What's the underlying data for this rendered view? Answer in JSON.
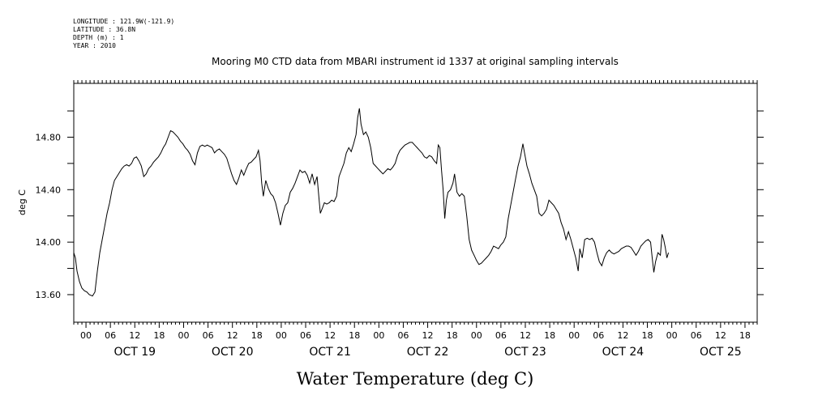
{
  "header": {
    "lines": [
      "LONGITUDE : 121.9W(-121.9)",
      "LATITUDE : 36.8N",
      "DEPTH (m) : 1",
      "YEAR : 2010"
    ]
  },
  "chart_data": {
    "type": "line",
    "title": "Mooring M0 CTD data from MBARI instrument id 1337 at original sampling intervals",
    "xlabel": "Water Temperature (deg C)",
    "ylabel": "deg C",
    "x_unit": "hours since 2010-10-19 00:00",
    "xlim": [
      -3,
      165
    ],
    "ylim": [
      13.39,
      15.21
    ],
    "y_ticks": [
      13.6,
      13.8,
      14.0,
      14.2,
      14.4,
      14.6,
      14.8,
      15.0
    ],
    "y_tick_labels": [
      {
        "value": 13.6,
        "label": "13.60"
      },
      {
        "value": 14.0,
        "label": "14.00"
      },
      {
        "value": 14.4,
        "label": "14.40"
      },
      {
        "value": 14.8,
        "label": "14.80"
      }
    ],
    "hour_ticks": [
      {
        "h": 0,
        "label": "00"
      },
      {
        "h": 6,
        "label": "06"
      },
      {
        "h": 12,
        "label": "12"
      },
      {
        "h": 18,
        "label": "18"
      },
      {
        "h": 24,
        "label": "00"
      },
      {
        "h": 30,
        "label": "06"
      },
      {
        "h": 36,
        "label": "12"
      },
      {
        "h": 42,
        "label": "18"
      },
      {
        "h": 48,
        "label": "00"
      },
      {
        "h": 54,
        "label": "06"
      },
      {
        "h": 60,
        "label": "12"
      },
      {
        "h": 66,
        "label": "18"
      },
      {
        "h": 72,
        "label": "00"
      },
      {
        "h": 78,
        "label": "06"
      },
      {
        "h": 84,
        "label": "12"
      },
      {
        "h": 90,
        "label": "18"
      },
      {
        "h": 96,
        "label": "00"
      },
      {
        "h": 102,
        "label": "06"
      },
      {
        "h": 108,
        "label": "12"
      },
      {
        "h": 114,
        "label": "18"
      },
      {
        "h": 120,
        "label": "00"
      },
      {
        "h": 126,
        "label": "06"
      },
      {
        "h": 132,
        "label": "12"
      },
      {
        "h": 138,
        "label": "18"
      },
      {
        "h": 144,
        "label": "00"
      },
      {
        "h": 150,
        "label": "06"
      },
      {
        "h": 156,
        "label": "12"
      },
      {
        "h": 162,
        "label": "18"
      }
    ],
    "day_labels": [
      {
        "h": 12,
        "label": "OCT 19"
      },
      {
        "h": 36,
        "label": "OCT 20"
      },
      {
        "h": 60,
        "label": "OCT 21"
      },
      {
        "h": 84,
        "label": "OCT 22"
      },
      {
        "h": 108,
        "label": "OCT 23"
      },
      {
        "h": 132,
        "label": "OCT 24"
      },
      {
        "h": 156,
        "label": "OCT 25"
      }
    ],
    "series": [
      {
        "points": [
          [
            -3.0,
            13.92
          ],
          [
            -2.6,
            13.88
          ],
          [
            -2.2,
            13.78
          ],
          [
            -1.6,
            13.7
          ],
          [
            -1.0,
            13.65
          ],
          [
            -0.4,
            13.63
          ],
          [
            0.2,
            13.62
          ],
          [
            0.8,
            13.6
          ],
          [
            1.6,
            13.59
          ],
          [
            2.2,
            13.62
          ],
          [
            2.8,
            13.78
          ],
          [
            3.4,
            13.92
          ],
          [
            4.0,
            14.02
          ],
          [
            4.6,
            14.12
          ],
          [
            5.2,
            14.22
          ],
          [
            5.8,
            14.3
          ],
          [
            6.4,
            14.4
          ],
          [
            7.0,
            14.47
          ],
          [
            7.6,
            14.5
          ],
          [
            8.2,
            14.53
          ],
          [
            8.8,
            14.56
          ],
          [
            9.4,
            14.58
          ],
          [
            10.0,
            14.59
          ],
          [
            10.6,
            14.58
          ],
          [
            11.2,
            14.6
          ],
          [
            11.8,
            14.64
          ],
          [
            12.4,
            14.65
          ],
          [
            13.0,
            14.62
          ],
          [
            13.6,
            14.58
          ],
          [
            14.2,
            14.5
          ],
          [
            14.8,
            14.52
          ],
          [
            15.4,
            14.56
          ],
          [
            16.0,
            14.58
          ],
          [
            16.6,
            14.61
          ],
          [
            17.2,
            14.63
          ],
          [
            17.8,
            14.65
          ],
          [
            18.4,
            14.68
          ],
          [
            19.0,
            14.72
          ],
          [
            19.6,
            14.75
          ],
          [
            20.2,
            14.8
          ],
          [
            20.8,
            14.85
          ],
          [
            21.4,
            14.84
          ],
          [
            22.0,
            14.82
          ],
          [
            22.6,
            14.8
          ],
          [
            23.2,
            14.77
          ],
          [
            23.8,
            14.75
          ],
          [
            24.4,
            14.72
          ],
          [
            25.0,
            14.7
          ],
          [
            25.6,
            14.67
          ],
          [
            26.2,
            14.62
          ],
          [
            26.8,
            14.59
          ],
          [
            27.4,
            14.68
          ],
          [
            28.0,
            14.73
          ],
          [
            28.6,
            14.74
          ],
          [
            29.2,
            14.73
          ],
          [
            29.8,
            14.74
          ],
          [
            30.4,
            14.73
          ],
          [
            31.0,
            14.72
          ],
          [
            31.6,
            14.68
          ],
          [
            32.2,
            14.7
          ],
          [
            32.8,
            14.71
          ],
          [
            33.4,
            14.69
          ],
          [
            34.0,
            14.67
          ],
          [
            34.6,
            14.64
          ],
          [
            35.2,
            14.58
          ],
          [
            35.8,
            14.52
          ],
          [
            36.4,
            14.47
          ],
          [
            37.0,
            14.44
          ],
          [
            37.6,
            14.49
          ],
          [
            38.2,
            14.55
          ],
          [
            38.8,
            14.51
          ],
          [
            39.4,
            14.56
          ],
          [
            40.0,
            14.6
          ],
          [
            40.6,
            14.61
          ],
          [
            41.2,
            14.63
          ],
          [
            41.8,
            14.65
          ],
          [
            42.4,
            14.7
          ],
          [
            42.8,
            14.62
          ],
          [
            43.2,
            14.45
          ],
          [
            43.6,
            14.35
          ],
          [
            44.2,
            14.47
          ],
          [
            44.8,
            14.41
          ],
          [
            45.4,
            14.37
          ],
          [
            46.0,
            14.35
          ],
          [
            46.6,
            14.3
          ],
          [
            47.2,
            14.22
          ],
          [
            47.8,
            14.13
          ],
          [
            48.4,
            14.22
          ],
          [
            49.0,
            14.28
          ],
          [
            49.6,
            14.3
          ],
          [
            50.2,
            14.38
          ],
          [
            50.8,
            14.41
          ],
          [
            51.4,
            14.45
          ],
          [
            52.0,
            14.5
          ],
          [
            52.6,
            14.55
          ],
          [
            53.2,
            14.53
          ],
          [
            53.8,
            14.54
          ],
          [
            54.4,
            14.51
          ],
          [
            55.0,
            14.45
          ],
          [
            55.6,
            14.52
          ],
          [
            56.2,
            14.44
          ],
          [
            56.8,
            14.5
          ],
          [
            57.2,
            14.36
          ],
          [
            57.6,
            14.22
          ],
          [
            58.0,
            14.25
          ],
          [
            58.6,
            14.3
          ],
          [
            59.2,
            14.29
          ],
          [
            59.8,
            14.3
          ],
          [
            60.4,
            14.32
          ],
          [
            61.0,
            14.31
          ],
          [
            61.6,
            14.35
          ],
          [
            62.2,
            14.5
          ],
          [
            62.8,
            14.55
          ],
          [
            63.4,
            14.6
          ],
          [
            64.0,
            14.68
          ],
          [
            64.6,
            14.72
          ],
          [
            65.2,
            14.69
          ],
          [
            65.8,
            14.75
          ],
          [
            66.4,
            14.82
          ],
          [
            66.8,
            14.95
          ],
          [
            67.2,
            15.02
          ],
          [
            67.6,
            14.9
          ],
          [
            68.2,
            14.82
          ],
          [
            68.8,
            14.84
          ],
          [
            69.4,
            14.8
          ],
          [
            70.0,
            14.72
          ],
          [
            70.6,
            14.6
          ],
          [
            71.2,
            14.58
          ],
          [
            71.8,
            14.56
          ],
          [
            72.4,
            14.54
          ],
          [
            73.0,
            14.52
          ],
          [
            73.6,
            14.54
          ],
          [
            74.2,
            14.56
          ],
          [
            74.8,
            14.55
          ],
          [
            75.4,
            14.57
          ],
          [
            76.0,
            14.6
          ],
          [
            76.6,
            14.66
          ],
          [
            77.2,
            14.7
          ],
          [
            77.8,
            14.72
          ],
          [
            78.4,
            14.74
          ],
          [
            79.0,
            14.75
          ],
          [
            79.6,
            14.76
          ],
          [
            80.2,
            14.76
          ],
          [
            80.8,
            14.74
          ],
          [
            81.4,
            14.72
          ],
          [
            82.0,
            14.7
          ],
          [
            82.6,
            14.68
          ],
          [
            83.2,
            14.65
          ],
          [
            83.8,
            14.64
          ],
          [
            84.4,
            14.66
          ],
          [
            85.0,
            14.65
          ],
          [
            85.6,
            14.62
          ],
          [
            86.2,
            14.6
          ],
          [
            86.6,
            14.74
          ],
          [
            87.0,
            14.72
          ],
          [
            87.4,
            14.55
          ],
          [
            87.8,
            14.4
          ],
          [
            88.2,
            14.18
          ],
          [
            88.6,
            14.32
          ],
          [
            89.0,
            14.38
          ],
          [
            89.6,
            14.4
          ],
          [
            90.2,
            14.45
          ],
          [
            90.6,
            14.52
          ],
          [
            91.2,
            14.38
          ],
          [
            91.8,
            14.35
          ],
          [
            92.4,
            14.37
          ],
          [
            93.0,
            14.35
          ],
          [
            93.6,
            14.2
          ],
          [
            94.2,
            14.02
          ],
          [
            94.8,
            13.94
          ],
          [
            95.4,
            13.9
          ],
          [
            96.0,
            13.86
          ],
          [
            96.6,
            13.83
          ],
          [
            97.2,
            13.84
          ],
          [
            97.8,
            13.86
          ],
          [
            98.4,
            13.88
          ],
          [
            99.0,
            13.9
          ],
          [
            99.6,
            13.93
          ],
          [
            100.2,
            13.97
          ],
          [
            100.8,
            13.96
          ],
          [
            101.4,
            13.95
          ],
          [
            102.0,
            13.98
          ],
          [
            102.6,
            14.0
          ],
          [
            103.2,
            14.04
          ],
          [
            103.8,
            14.18
          ],
          [
            104.4,
            14.28
          ],
          [
            105.0,
            14.38
          ],
          [
            105.6,
            14.48
          ],
          [
            106.2,
            14.58
          ],
          [
            106.8,
            14.65
          ],
          [
            107.4,
            14.75
          ],
          [
            107.8,
            14.68
          ],
          [
            108.4,
            14.58
          ],
          [
            109.0,
            14.52
          ],
          [
            109.6,
            14.45
          ],
          [
            110.2,
            14.4
          ],
          [
            110.8,
            14.35
          ],
          [
            111.4,
            14.22
          ],
          [
            112.0,
            14.2
          ],
          [
            112.6,
            14.22
          ],
          [
            113.2,
            14.25
          ],
          [
            113.8,
            14.32
          ],
          [
            114.4,
            14.3
          ],
          [
            115.0,
            14.28
          ],
          [
            115.6,
            14.25
          ],
          [
            116.2,
            14.22
          ],
          [
            116.8,
            14.15
          ],
          [
            117.4,
            14.1
          ],
          [
            118.0,
            14.02
          ],
          [
            118.6,
            14.08
          ],
          [
            119.2,
            14.02
          ],
          [
            119.8,
            13.95
          ],
          [
            120.4,
            13.88
          ],
          [
            121.0,
            13.78
          ],
          [
            121.4,
            13.95
          ],
          [
            122.0,
            13.88
          ],
          [
            122.6,
            14.02
          ],
          [
            123.2,
            14.03
          ],
          [
            123.8,
            14.02
          ],
          [
            124.4,
            14.03
          ],
          [
            125.0,
            14.0
          ],
          [
            125.6,
            13.92
          ],
          [
            126.2,
            13.85
          ],
          [
            126.8,
            13.82
          ],
          [
            127.4,
            13.88
          ],
          [
            128.0,
            13.92
          ],
          [
            128.6,
            13.94
          ],
          [
            129.2,
            13.92
          ],
          [
            129.8,
            13.91
          ],
          [
            130.4,
            13.92
          ],
          [
            131.0,
            13.93
          ],
          [
            131.6,
            13.95
          ],
          [
            132.2,
            13.96
          ],
          [
            132.8,
            13.97
          ],
          [
            133.4,
            13.97
          ],
          [
            134.0,
            13.96
          ],
          [
            134.6,
            13.93
          ],
          [
            135.2,
            13.9
          ],
          [
            135.8,
            13.93
          ],
          [
            136.4,
            13.97
          ],
          [
            137.0,
            13.99
          ],
          [
            137.6,
            14.01
          ],
          [
            138.2,
            14.02
          ],
          [
            138.8,
            14.0
          ],
          [
            139.2,
            13.88
          ],
          [
            139.6,
            13.77
          ],
          [
            140.0,
            13.85
          ],
          [
            140.6,
            13.92
          ],
          [
            141.2,
            13.9
          ],
          [
            141.6,
            14.06
          ],
          [
            142.0,
            14.02
          ],
          [
            142.4,
            13.96
          ],
          [
            142.8,
            13.88
          ],
          [
            143.2,
            13.92
          ]
        ]
      }
    ]
  }
}
